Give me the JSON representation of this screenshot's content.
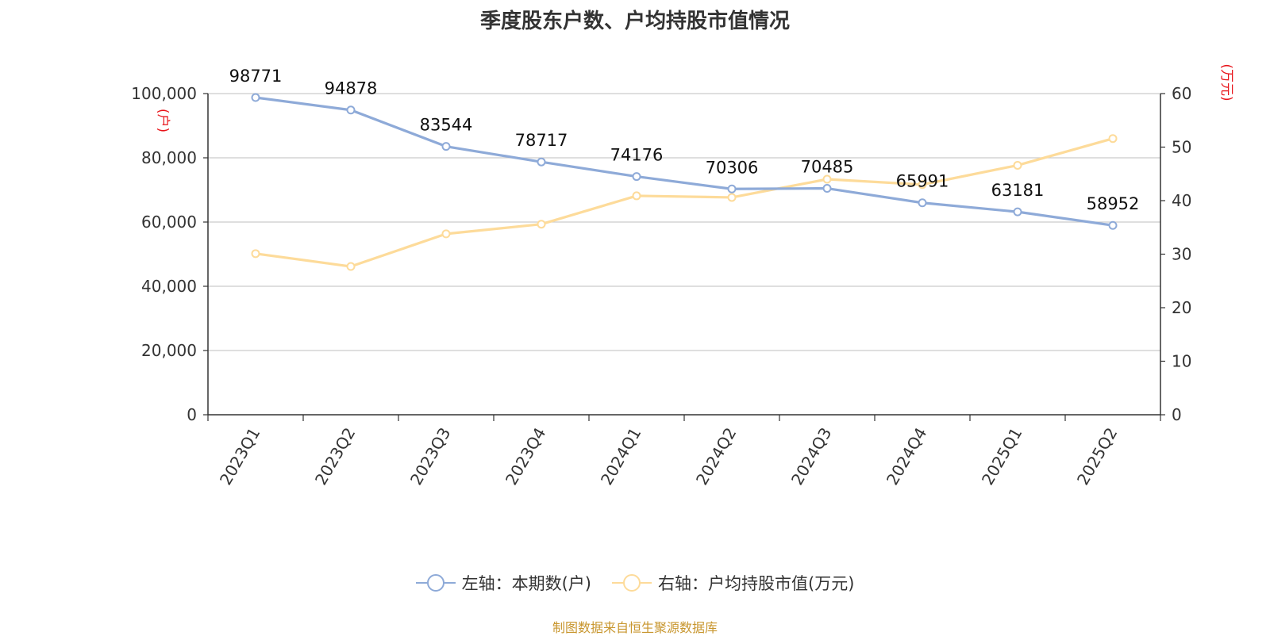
{
  "title": "季度股东户数、户均持股市值情况",
  "source_note": "制图数据来自恒生聚源数据库",
  "chart_data": {
    "type": "line",
    "title": "季度股东户数、户均持股市值情况",
    "categories": [
      "2023Q1",
      "2023Q2",
      "2023Q3",
      "2023Q4",
      "2024Q1",
      "2024Q2",
      "2024Q3",
      "2024Q4",
      "2025Q1",
      "2025Q2"
    ],
    "left_axis": {
      "unit": "(户)",
      "ylim": [
        0,
        100000
      ],
      "ticks": [
        0,
        20000,
        40000,
        60000,
        80000,
        100000
      ],
      "tick_labels": [
        "0",
        "20,000",
        "40,000",
        "60,000",
        "80,000",
        "100,000"
      ]
    },
    "right_axis": {
      "unit": "(万元)",
      "ylim": [
        0,
        60
      ],
      "ticks": [
        0,
        10,
        20,
        30,
        40,
        50,
        60
      ],
      "tick_labels": [
        "0",
        "10",
        "20",
        "30",
        "40",
        "50",
        "60"
      ]
    },
    "series": [
      {
        "name": "左轴：本期数(户)",
        "axis": "left",
        "color": "#8eaad8",
        "show_labels": true,
        "values": [
          98771,
          94878,
          83544,
          78717,
          74176,
          70306,
          70485,
          65991,
          63181,
          58952
        ]
      },
      {
        "name": "右轴：户均持股市值(万元)",
        "axis": "right",
        "color": "#fddb9a",
        "show_labels": false,
        "values": [
          30.1,
          27.7,
          33.8,
          35.6,
          40.9,
          40.6,
          44.0,
          43.0,
          46.6,
          51.6
        ]
      }
    ],
    "grid": true,
    "legend_position": "bottom-center"
  }
}
